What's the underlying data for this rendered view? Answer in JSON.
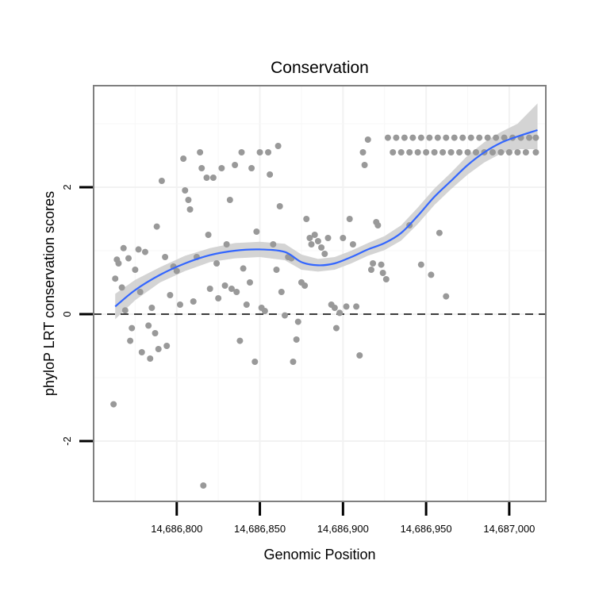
{
  "chart_data": {
    "type": "scatter",
    "title": "Conservation",
    "xlabel": "Genomic Position",
    "ylabel": "phyloP LRT conservation scores",
    "xlim": [
      14686750,
      14687022
    ],
    "ylim": [
      -2.95,
      3.6
    ],
    "x_ticks": [
      {
        "value": 14686800,
        "label": "14,686,800"
      },
      {
        "value": 14686850,
        "label": "14,686,850"
      },
      {
        "value": 14686900,
        "label": "14,686,900"
      },
      {
        "value": 14686950,
        "label": "14,686,950"
      },
      {
        "value": 14687000,
        "label": "14,687,000"
      }
    ],
    "y_ticks": [
      {
        "value": -2,
        "label": "-2"
      },
      {
        "value": 0,
        "label": "0"
      },
      {
        "value": 2,
        "label": "2"
      }
    ],
    "reference_line": {
      "y": 0,
      "style": "dashed",
      "color": "#000000"
    },
    "points_color": "#999999",
    "smooth": {
      "color": "#3366FF",
      "band_color": "#cccccc",
      "x": [
        14686763,
        14686775,
        14686790,
        14686805,
        14686820,
        14686835,
        14686850,
        14686865,
        14686875,
        14686885,
        14686895,
        14686905,
        14686915,
        14686925,
        14686935,
        14686945,
        14686955,
        14686965,
        14686975,
        14686985,
        14686995,
        14687005,
        14687017
      ],
      "y": [
        0.12,
        0.38,
        0.62,
        0.8,
        0.93,
        1.0,
        1.02,
        0.98,
        0.82,
        0.77,
        0.8,
        0.9,
        1.02,
        1.12,
        1.28,
        1.55,
        1.85,
        2.1,
        2.35,
        2.55,
        2.7,
        2.8,
        2.9
      ],
      "lower": [
        -0.08,
        0.22,
        0.5,
        0.68,
        0.82,
        0.88,
        0.9,
        0.85,
        0.7,
        0.67,
        0.7,
        0.8,
        0.92,
        1.01,
        1.16,
        1.42,
        1.72,
        1.97,
        2.2,
        2.39,
        2.53,
        2.6,
        2.6
      ],
      "upper": [
        0.32,
        0.54,
        0.74,
        0.92,
        1.04,
        1.12,
        1.14,
        1.11,
        0.94,
        0.87,
        0.9,
        1.0,
        1.12,
        1.23,
        1.4,
        1.68,
        1.98,
        2.23,
        2.5,
        2.71,
        2.87,
        3.0,
        3.32
      ]
    },
    "points": [
      {
        "x": 14686762,
        "y": -1.42
      },
      {
        "x": 14686763,
        "y": 0.56
      },
      {
        "x": 14686764,
        "y": 0.86
      },
      {
        "x": 14686765,
        "y": 0.8
      },
      {
        "x": 14686767,
        "y": 0.42
      },
      {
        "x": 14686768,
        "y": 1.04
      },
      {
        "x": 14686769,
        "y": 0.06
      },
      {
        "x": 14686771,
        "y": 0.88
      },
      {
        "x": 14686772,
        "y": -0.42
      },
      {
        "x": 14686773,
        "y": -0.22
      },
      {
        "x": 14686775,
        "y": 0.7
      },
      {
        "x": 14686777,
        "y": 1.02
      },
      {
        "x": 14686778,
        "y": 0.35
      },
      {
        "x": 14686779,
        "y": -0.6
      },
      {
        "x": 14686781,
        "y": 0.98
      },
      {
        "x": 14686783,
        "y": -0.18
      },
      {
        "x": 14686784,
        "y": -0.7
      },
      {
        "x": 14686785,
        "y": 0.1
      },
      {
        "x": 14686787,
        "y": -0.3
      },
      {
        "x": 14686788,
        "y": 1.38
      },
      {
        "x": 14686789,
        "y": -0.55
      },
      {
        "x": 14686791,
        "y": 2.1
      },
      {
        "x": 14686793,
        "y": 0.9
      },
      {
        "x": 14686794,
        "y": -0.5
      },
      {
        "x": 14686796,
        "y": 0.3
      },
      {
        "x": 14686798,
        "y": 0.75
      },
      {
        "x": 14686800,
        "y": 0.68
      },
      {
        "x": 14686802,
        "y": 0.15
      },
      {
        "x": 14686804,
        "y": 2.45
      },
      {
        "x": 14686805,
        "y": 1.95
      },
      {
        "x": 14686807,
        "y": 1.8
      },
      {
        "x": 14686808,
        "y": 1.65
      },
      {
        "x": 14686810,
        "y": 0.2
      },
      {
        "x": 14686812,
        "y": 0.9
      },
      {
        "x": 14686814,
        "y": 2.55
      },
      {
        "x": 14686815,
        "y": 2.3
      },
      {
        "x": 14686816,
        "y": -2.7
      },
      {
        "x": 14686818,
        "y": 2.15
      },
      {
        "x": 14686819,
        "y": 1.25
      },
      {
        "x": 14686820,
        "y": 0.4
      },
      {
        "x": 14686822,
        "y": 2.15
      },
      {
        "x": 14686824,
        "y": 0.8
      },
      {
        "x": 14686825,
        "y": 0.25
      },
      {
        "x": 14686827,
        "y": 2.3
      },
      {
        "x": 14686829,
        "y": 0.45
      },
      {
        "x": 14686830,
        "y": 1.1
      },
      {
        "x": 14686832,
        "y": 1.8
      },
      {
        "x": 14686833,
        "y": 0.4
      },
      {
        "x": 14686835,
        "y": 2.35
      },
      {
        "x": 14686836,
        "y": 0.35
      },
      {
        "x": 14686838,
        "y": -0.42
      },
      {
        "x": 14686839,
        "y": 2.55
      },
      {
        "x": 14686840,
        "y": 0.72
      },
      {
        "x": 14686842,
        "y": 0.15
      },
      {
        "x": 14686844,
        "y": 0.5
      },
      {
        "x": 14686845,
        "y": 2.3
      },
      {
        "x": 14686847,
        "y": -0.75
      },
      {
        "x": 14686848,
        "y": 1.3
      },
      {
        "x": 14686850,
        "y": 2.55
      },
      {
        "x": 14686851,
        "y": 0.1
      },
      {
        "x": 14686853,
        "y": 0.05
      },
      {
        "x": 14686855,
        "y": 2.55
      },
      {
        "x": 14686856,
        "y": 2.2
      },
      {
        "x": 14686858,
        "y": 1.1
      },
      {
        "x": 14686860,
        "y": 0.7
      },
      {
        "x": 14686861,
        "y": 2.65
      },
      {
        "x": 14686862,
        "y": 1.7
      },
      {
        "x": 14686863,
        "y": 0.35
      },
      {
        "x": 14686865,
        "y": -0.02
      },
      {
        "x": 14686867,
        "y": 0.9
      },
      {
        "x": 14686869,
        "y": 0.88
      },
      {
        "x": 14686870,
        "y": -0.75
      },
      {
        "x": 14686872,
        "y": -0.4
      },
      {
        "x": 14686873,
        "y": -0.12
      },
      {
        "x": 14686875,
        "y": 0.5
      },
      {
        "x": 14686877,
        "y": 0.45
      },
      {
        "x": 14686878,
        "y": 1.5
      },
      {
        "x": 14686880,
        "y": 1.2
      },
      {
        "x": 14686881,
        "y": 1.1
      },
      {
        "x": 14686883,
        "y": 1.25
      },
      {
        "x": 14686885,
        "y": 1.15
      },
      {
        "x": 14686887,
        "y": 1.05
      },
      {
        "x": 14686889,
        "y": 0.95
      },
      {
        "x": 14686891,
        "y": 1.2
      },
      {
        "x": 14686893,
        "y": 0.15
      },
      {
        "x": 14686895,
        "y": 0.1
      },
      {
        "x": 14686896,
        "y": -0.22
      },
      {
        "x": 14686898,
        "y": 0.02
      },
      {
        "x": 14686900,
        "y": 1.2
      },
      {
        "x": 14686902,
        "y": 0.12
      },
      {
        "x": 14686904,
        "y": 1.5
      },
      {
        "x": 14686906,
        "y": 1.1
      },
      {
        "x": 14686908,
        "y": 0.12
      },
      {
        "x": 14686910,
        "y": -0.65
      },
      {
        "x": 14686912,
        "y": 2.55
      },
      {
        "x": 14686913,
        "y": 2.35
      },
      {
        "x": 14686915,
        "y": 2.75
      },
      {
        "x": 14686917,
        "y": 0.7
      },
      {
        "x": 14686918,
        "y": 0.8
      },
      {
        "x": 14686920,
        "y": 1.45
      },
      {
        "x": 14686921,
        "y": 1.4
      },
      {
        "x": 14686923,
        "y": 0.78
      },
      {
        "x": 14686924,
        "y": 0.65
      },
      {
        "x": 14686926,
        "y": 0.55
      },
      {
        "x": 14686927,
        "y": 2.78
      },
      {
        "x": 14686932,
        "y": 2.78
      },
      {
        "x": 14686937,
        "y": 2.78
      },
      {
        "x": 14686942,
        "y": 2.78
      },
      {
        "x": 14686947,
        "y": 2.78
      },
      {
        "x": 14686952,
        "y": 2.78
      },
      {
        "x": 14686957,
        "y": 2.78
      },
      {
        "x": 14686962,
        "y": 2.78
      },
      {
        "x": 14686967,
        "y": 2.78
      },
      {
        "x": 14686972,
        "y": 2.78
      },
      {
        "x": 14686977,
        "y": 2.78
      },
      {
        "x": 14686982,
        "y": 2.78
      },
      {
        "x": 14686987,
        "y": 2.78
      },
      {
        "x": 14686992,
        "y": 2.78
      },
      {
        "x": 14686997,
        "y": 2.78
      },
      {
        "x": 14687002,
        "y": 2.78
      },
      {
        "x": 14687007,
        "y": 2.78
      },
      {
        "x": 14687012,
        "y": 2.78
      },
      {
        "x": 14687016,
        "y": 2.78
      },
      {
        "x": 14686930,
        "y": 2.55
      },
      {
        "x": 14686935,
        "y": 2.55
      },
      {
        "x": 14686940,
        "y": 2.55
      },
      {
        "x": 14686945,
        "y": 2.55
      },
      {
        "x": 14686950,
        "y": 2.55
      },
      {
        "x": 14686955,
        "y": 2.55
      },
      {
        "x": 14686960,
        "y": 2.55
      },
      {
        "x": 14686965,
        "y": 2.55
      },
      {
        "x": 14686970,
        "y": 2.55
      },
      {
        "x": 14686975,
        "y": 2.55
      },
      {
        "x": 14686980,
        "y": 2.55
      },
      {
        "x": 14686985,
        "y": 2.55
      },
      {
        "x": 14686990,
        "y": 2.55
      },
      {
        "x": 14686995,
        "y": 2.55
      },
      {
        "x": 14687000,
        "y": 2.55
      },
      {
        "x": 14687005,
        "y": 2.55
      },
      {
        "x": 14687010,
        "y": 2.55
      },
      {
        "x": 14687016,
        "y": 2.55
      },
      {
        "x": 14686940,
        "y": 1.4
      },
      {
        "x": 14686958,
        "y": 1.28
      },
      {
        "x": 14686947,
        "y": 0.78
      },
      {
        "x": 14686953,
        "y": 0.62
      },
      {
        "x": 14686962,
        "y": 0.28
      }
    ]
  }
}
